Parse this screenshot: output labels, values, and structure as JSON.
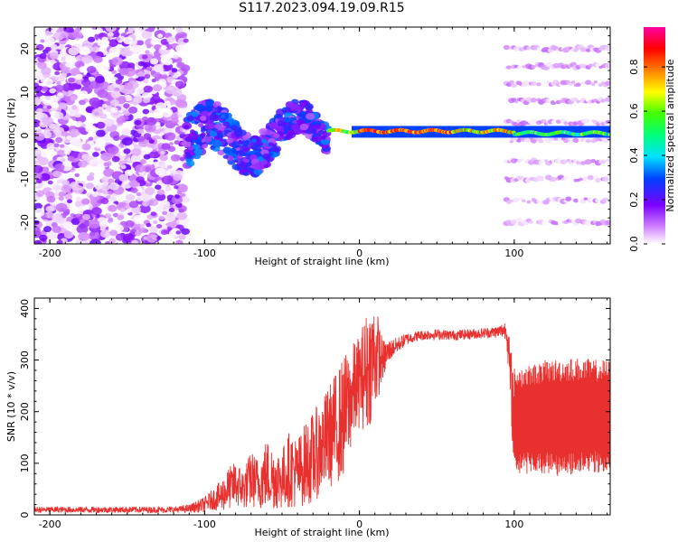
{
  "title": "S117.2023.094.19.09.R15",
  "colors": {
    "snr_line": "#e8302e",
    "axis": "#000000"
  },
  "chart_data": [
    {
      "type": "heatmap",
      "xlabel": "Height of straight line (km)",
      "ylabel": "Frequency (Hz)",
      "xlim": [
        -210,
        162
      ],
      "ylim": [
        -25,
        25
      ],
      "xticks": [
        -200,
        -100,
        0,
        100
      ],
      "yticks": [
        -20,
        -10,
        0,
        10,
        20
      ],
      "colorbar": {
        "label": "Normalized spectral amplitude",
        "range": [
          0.0,
          0.98
        ],
        "ticks": [
          0.0,
          0.2,
          0.4,
          0.6,
          0.8
        ],
        "tick_labels": [
          "0.0",
          "0.2",
          "0.4",
          "0.6",
          "0.8"
        ]
      },
      "regions": [
        {
          "name": "noise",
          "x_range": [
            -210,
            -112
          ],
          "freq_range": [
            -25,
            25
          ],
          "amplitude": [
            0.0,
            0.2
          ]
        },
        {
          "name": "scattered",
          "x_range": [
            -112,
            -20
          ],
          "center_freq": 0,
          "spread": 10,
          "amplitude": [
            0.1,
            0.35
          ]
        },
        {
          "name": "line",
          "x_range": [
            -20,
            162
          ],
          "center_freq": 1,
          "amplitude": [
            0.3,
            0.98
          ]
        },
        {
          "name": "harmonics",
          "x_range": [
            95,
            162
          ],
          "freqs": [
            -20,
            -15,
            -10,
            -6,
            -1,
            3,
            8,
            12,
            16,
            20
          ],
          "amplitude": [
            0.0,
            0.1
          ]
        }
      ],
      "grid": false
    },
    {
      "type": "line",
      "xlabel": "Height of straight line (km)",
      "ylabel": "SNR (10 * v/v)",
      "xlim": [
        -210,
        162
      ],
      "ylim": [
        0,
        420
      ],
      "xticks": [
        -200,
        -100,
        0,
        100
      ],
      "yticks": [
        0,
        100,
        200,
        300,
        400
      ],
      "series": [
        {
          "x": [
            -210,
            -180,
            -150,
            -120,
            -110,
            -100,
            -95,
            -90,
            -85,
            -80,
            -75,
            -70,
            -65,
            -60,
            -55,
            -50,
            -45,
            -40,
            -35,
            -30,
            -25,
            -20,
            -15,
            -10,
            -5,
            0,
            5,
            10,
            15,
            20,
            25,
            30,
            35,
            40,
            50,
            60,
            70,
            80,
            90,
            95,
            100,
            110,
            120,
            130,
            140,
            150,
            162
          ],
          "mid": [
            10,
            10,
            10,
            10,
            12,
            20,
            30,
            35,
            50,
            60,
            50,
            70,
            60,
            80,
            70,
            70,
            90,
            80,
            100,
            110,
            130,
            150,
            170,
            190,
            230,
            260,
            280,
            310,
            300,
            320,
            330,
            340,
            345,
            348,
            350,
            348,
            350,
            352,
            355,
            360,
            180,
            185,
            190,
            188,
            190,
            192,
            190
          ],
          "amp": [
            6,
            6,
            6,
            6,
            8,
            15,
            20,
            30,
            40,
            45,
            40,
            55,
            50,
            70,
            60,
            60,
            75,
            70,
            80,
            90,
            90,
            100,
            110,
            120,
            100,
            90,
            120,
            110,
            40,
            20,
            15,
            12,
            10,
            10,
            10,
            10,
            10,
            10,
            12,
            20,
            105,
            105,
            110,
            115,
            115,
            110,
            110
          ]
        }
      ],
      "grid": false
    }
  ]
}
